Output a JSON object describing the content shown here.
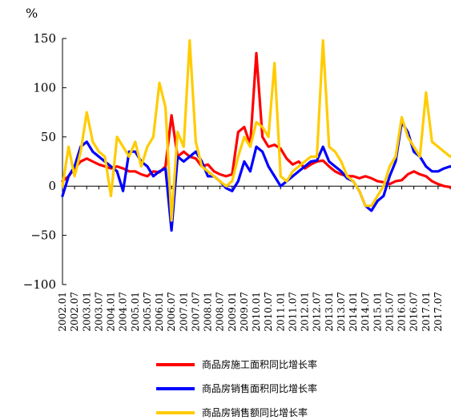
{
  "chart_data": {
    "type": "line",
    "unit_label": "%",
    "ylim": [
      -100,
      150
    ],
    "y_ticks": [
      "150",
      "100",
      "50",
      "0",
      "−50",
      "−100"
    ],
    "y_tick_values": [
      150,
      100,
      50,
      0,
      -50,
      -100
    ],
    "x_tick_labels": [
      "2002.01",
      "2002.07",
      "2003.01",
      "2003.07",
      "2004.01",
      "2004.07",
      "2005.01",
      "2005.07",
      "2006.01",
      "2006.07",
      "2007.01",
      "2007.07",
      "2008.01",
      "2008.07",
      "2009.01",
      "2009.07",
      "2010.01",
      "2010.07",
      "2011.01",
      "2011.07",
      "2012.01",
      "2012.07",
      "2013.01",
      "2013.07",
      "2014.01",
      "2014.07",
      "2015.01",
      "2015.07",
      "2016.01",
      "2016.07",
      "2017.01",
      "2017.07"
    ],
    "grid": false,
    "legend_position": "bottom",
    "series": [
      {
        "name": "商品房施工面积同比增长率",
        "color": "#ff0000",
        "points": [
          [
            0,
            5
          ],
          [
            1,
            10
          ],
          [
            2,
            18
          ],
          [
            3,
            25
          ],
          [
            4,
            28
          ],
          [
            5,
            25
          ],
          [
            6,
            22
          ],
          [
            7,
            20
          ],
          [
            8,
            18
          ],
          [
            9,
            20
          ],
          [
            10,
            18
          ],
          [
            11,
            15
          ],
          [
            12,
            15
          ],
          [
            13,
            12
          ],
          [
            14,
            10
          ],
          [
            15,
            15
          ],
          [
            16,
            14
          ],
          [
            17,
            20
          ],
          [
            18,
            72
          ],
          [
            19,
            30
          ],
          [
            20,
            35
          ],
          [
            21,
            30
          ],
          [
            22,
            28
          ],
          [
            23,
            20
          ],
          [
            24,
            22
          ],
          [
            25,
            15
          ],
          [
            26,
            12
          ],
          [
            27,
            10
          ],
          [
            28,
            12
          ],
          [
            29,
            55
          ],
          [
            30,
            60
          ],
          [
            31,
            42
          ],
          [
            32,
            135
          ],
          [
            33,
            50
          ],
          [
            34,
            40
          ],
          [
            35,
            42
          ],
          [
            36,
            38
          ],
          [
            37,
            28
          ],
          [
            38,
            22
          ],
          [
            39,
            25
          ],
          [
            40,
            18
          ],
          [
            41,
            22
          ],
          [
            42,
            25
          ],
          [
            43,
            26
          ],
          [
            44,
            20
          ],
          [
            45,
            15
          ],
          [
            46,
            12
          ],
          [
            47,
            10
          ],
          [
            48,
            10
          ],
          [
            49,
            8
          ],
          [
            50,
            10
          ],
          [
            51,
            8
          ],
          [
            52,
            5
          ],
          [
            53,
            4
          ],
          [
            54,
            2
          ],
          [
            55,
            5
          ],
          [
            56,
            6
          ],
          [
            57,
            12
          ],
          [
            58,
            15
          ],
          [
            59,
            12
          ],
          [
            60,
            10
          ],
          [
            61,
            5
          ],
          [
            62,
            2
          ],
          [
            63,
            0
          ],
          [
            64,
            -1
          ],
          [
            65,
            -2
          ]
        ]
      },
      {
        "name": "商品房销售面积同比增长率",
        "color": "#0000ff",
        "points": [
          [
            0,
            -10
          ],
          [
            1,
            10
          ],
          [
            2,
            20
          ],
          [
            3,
            40
          ],
          [
            4,
            45
          ],
          [
            5,
            35
          ],
          [
            6,
            30
          ],
          [
            7,
            25
          ],
          [
            8,
            20
          ],
          [
            9,
            15
          ],
          [
            10,
            -5
          ],
          [
            11,
            35
          ],
          [
            12,
            35
          ],
          [
            13,
            25
          ],
          [
            14,
            20
          ],
          [
            15,
            10
          ],
          [
            16,
            15
          ],
          [
            17,
            18
          ],
          [
            18,
            -45
          ],
          [
            19,
            30
          ],
          [
            20,
            25
          ],
          [
            21,
            30
          ],
          [
            22,
            35
          ],
          [
            23,
            25
          ],
          [
            24,
            10
          ],
          [
            25,
            10
          ],
          [
            26,
            5
          ],
          [
            27,
            -2
          ],
          [
            28,
            -5
          ],
          [
            29,
            5
          ],
          [
            30,
            25
          ],
          [
            31,
            15
          ],
          [
            32,
            40
          ],
          [
            33,
            35
          ],
          [
            34,
            20
          ],
          [
            35,
            10
          ],
          [
            36,
            0
          ],
          [
            37,
            5
          ],
          [
            38,
            10
          ],
          [
            39,
            15
          ],
          [
            40,
            20
          ],
          [
            41,
            25
          ],
          [
            42,
            26
          ],
          [
            43,
            40
          ],
          [
            44,
            25
          ],
          [
            45,
            20
          ],
          [
            46,
            15
          ],
          [
            47,
            8
          ],
          [
            48,
            5
          ],
          [
            49,
            -5
          ],
          [
            50,
            -20
          ],
          [
            51,
            -25
          ],
          [
            52,
            -15
          ],
          [
            53,
            -10
          ],
          [
            54,
            10
          ],
          [
            55,
            25
          ],
          [
            56,
            65
          ],
          [
            57,
            55
          ],
          [
            58,
            35
          ],
          [
            59,
            30
          ],
          [
            60,
            20
          ],
          [
            61,
            15
          ],
          [
            62,
            15
          ],
          [
            63,
            18
          ],
          [
            64,
            20
          ],
          [
            65,
            18
          ]
        ]
      },
      {
        "name": "商品房销售额同比增长率",
        "color": "#ffcc00",
        "points": [
          [
            0,
            0
          ],
          [
            1,
            40
          ],
          [
            2,
            10
          ],
          [
            3,
            35
          ],
          [
            4,
            75
          ],
          [
            5,
            45
          ],
          [
            6,
            35
          ],
          [
            7,
            30
          ],
          [
            8,
            -10
          ],
          [
            9,
            50
          ],
          [
            10,
            40
          ],
          [
            11,
            30
          ],
          [
            12,
            45
          ],
          [
            13,
            20
          ],
          [
            14,
            40
          ],
          [
            15,
            50
          ],
          [
            16,
            105
          ],
          [
            17,
            80
          ],
          [
            18,
            -35
          ],
          [
            19,
            55
          ],
          [
            20,
            40
          ],
          [
            21,
            148
          ],
          [
            22,
            45
          ],
          [
            23,
            20
          ],
          [
            24,
            15
          ],
          [
            25,
            10
          ],
          [
            26,
            5
          ],
          [
            27,
            0
          ],
          [
            28,
            5
          ],
          [
            29,
            30
          ],
          [
            30,
            50
          ],
          [
            31,
            40
          ],
          [
            32,
            65
          ],
          [
            33,
            60
          ],
          [
            34,
            50
          ],
          [
            35,
            125
          ],
          [
            36,
            10
          ],
          [
            37,
            5
          ],
          [
            38,
            15
          ],
          [
            39,
            20
          ],
          [
            40,
            25
          ],
          [
            41,
            30
          ],
          [
            42,
            30
          ],
          [
            43,
            148
          ],
          [
            44,
            40
          ],
          [
            45,
            35
          ],
          [
            46,
            25
          ],
          [
            47,
            10
          ],
          [
            48,
            5
          ],
          [
            49,
            -5
          ],
          [
            50,
            -20
          ],
          [
            51,
            -20
          ],
          [
            52,
            -10
          ],
          [
            53,
            0
          ],
          [
            54,
            20
          ],
          [
            55,
            30
          ],
          [
            56,
            70
          ],
          [
            57,
            50
          ],
          [
            58,
            40
          ],
          [
            59,
            30
          ],
          [
            60,
            95
          ],
          [
            61,
            45
          ],
          [
            62,
            40
          ],
          [
            63,
            35
          ],
          [
            64,
            30
          ],
          [
            65,
            35
          ]
        ]
      }
    ]
  }
}
